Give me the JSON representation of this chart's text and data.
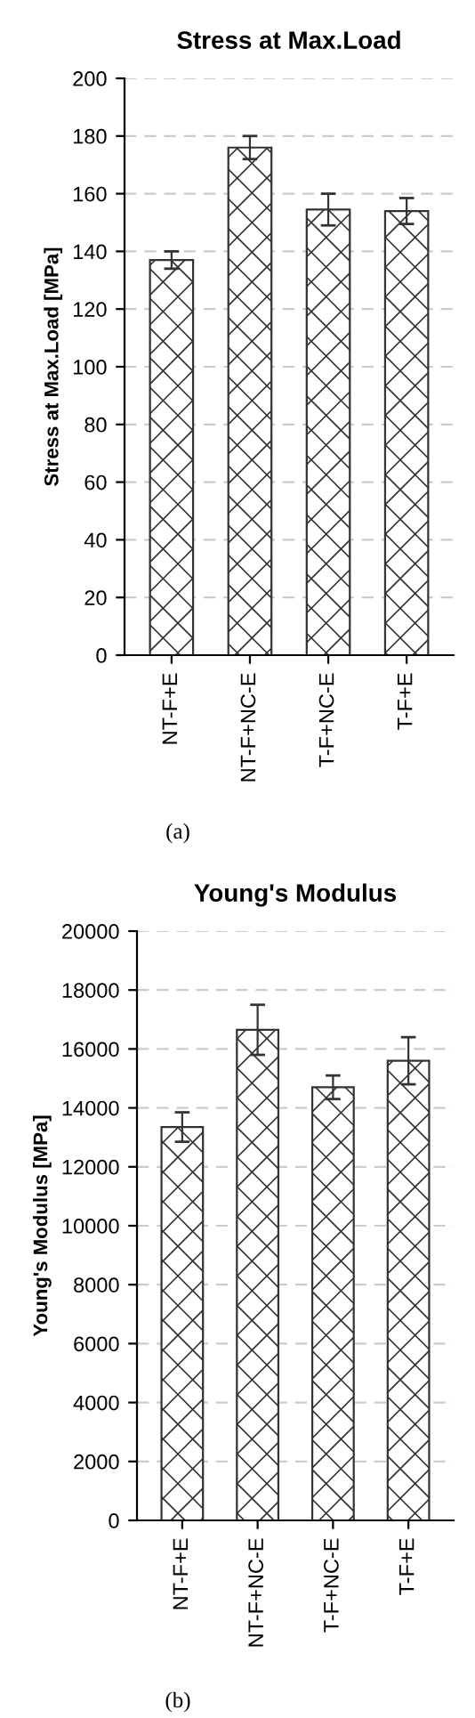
{
  "chart_data": [
    {
      "type": "bar",
      "title": "Stress at Max.Load",
      "ylabel": "Stress at Max.Load [MPa]",
      "categories": [
        "NT-F+E",
        "NT-F+NC-E",
        "T-F+NC-E",
        "T-F+E"
      ],
      "values": [
        137,
        176,
        154.5,
        154
      ],
      "errors": [
        3,
        4,
        5.5,
        4.5
      ],
      "color": "#333333",
      "ylim": [
        0,
        200
      ],
      "yticks": [
        0,
        20,
        40,
        60,
        80,
        100,
        120,
        140,
        160,
        180,
        200
      ],
      "grid": "y",
      "annotations": [
        "(a)"
      ]
    },
    {
      "type": "bar",
      "title": "Young's Modulus",
      "ylabel": "Young's Modulus [MPa]",
      "categories": [
        "NT-F+E",
        "NT-F+NC-E",
        "T-F+NC-E",
        "T-F+E"
      ],
      "values": [
        13350,
        16650,
        14700,
        15600
      ],
      "errors": [
        500,
        850,
        400,
        800
      ],
      "color": "#333333",
      "ylim": [
        0,
        20000
      ],
      "yticks": [
        0,
        2000,
        4000,
        6000,
        8000,
        10000,
        12000,
        14000,
        16000,
        18000,
        20000
      ],
      "grid": "y",
      "annotations": [
        "(b)"
      ]
    }
  ]
}
